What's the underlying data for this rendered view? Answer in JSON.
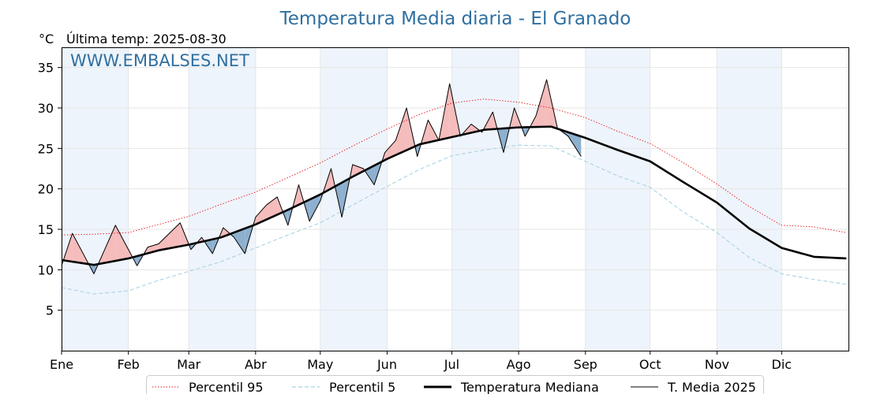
{
  "chart_data": {
    "type": "line",
    "title": "Temperatura Media diaria - El Granado",
    "unit_label": "°C",
    "last_temp_label": "Última temp: 2025-08-30",
    "watermark": "WWW.EMBALSES.NET",
    "ylabel": "",
    "xlabel": "",
    "ylim": [
      0,
      37.5
    ],
    "xlim": [
      1,
      366
    ],
    "y_ticks": [
      5,
      10,
      15,
      20,
      25,
      30,
      35
    ],
    "month_labels": [
      "Ene",
      "Feb",
      "Mar",
      "Abr",
      "May",
      "Jun",
      "Jul",
      "Ago",
      "Sep",
      "Oct",
      "Nov",
      "Dic"
    ],
    "month_start_days": [
      1,
      32,
      60,
      91,
      121,
      152,
      182,
      213,
      244,
      274,
      305,
      335
    ],
    "grid": true,
    "legend_position": "bottom",
    "series": [
      {
        "name": "Percentil 95",
        "style": "dotted",
        "color": "#e8141a",
        "x": [
          1,
          16,
          32,
          46,
          60,
          75,
          91,
          106,
          121,
          136,
          152,
          167,
          182,
          197,
          213,
          228,
          244,
          259,
          274,
          289,
          305,
          320,
          335,
          350,
          365
        ],
        "y": [
          14.3,
          14.4,
          14.6,
          15.6,
          16.6,
          18.1,
          19.6,
          21.4,
          23.2,
          25.3,
          27.4,
          29.2,
          30.6,
          31.1,
          30.7,
          30.0,
          28.8,
          27.1,
          25.6,
          23.3,
          20.6,
          17.8,
          15.5,
          15.3,
          14.6
        ]
      },
      {
        "name": "Percentil 5",
        "style": "dashed",
        "color": "#a9d3e3",
        "x": [
          1,
          16,
          32,
          46,
          60,
          75,
          91,
          106,
          121,
          136,
          152,
          167,
          182,
          197,
          213,
          228,
          244,
          259,
          274,
          289,
          305,
          320,
          335,
          350,
          365
        ],
        "y": [
          7.8,
          7.0,
          7.4,
          8.7,
          9.8,
          11.0,
          12.7,
          14.3,
          15.8,
          18.0,
          20.3,
          22.4,
          24.1,
          24.8,
          25.4,
          25.3,
          23.4,
          21.6,
          20.2,
          17.2,
          14.6,
          11.5,
          9.5,
          8.8,
          8.2
        ]
      },
      {
        "name": "Temperatura Mediana",
        "style": "bold",
        "color": "#000000",
        "x": [
          1,
          16,
          32,
          46,
          60,
          75,
          91,
          106,
          121,
          136,
          152,
          167,
          182,
          197,
          213,
          228,
          244,
          259,
          274,
          289,
          305,
          320,
          335,
          350,
          365
        ],
        "y": [
          11.2,
          10.6,
          11.4,
          12.4,
          13.1,
          14.0,
          15.6,
          17.4,
          19.3,
          21.5,
          23.7,
          25.5,
          26.4,
          27.3,
          27.6,
          27.7,
          26.3,
          24.8,
          23.4,
          20.9,
          18.3,
          15.1,
          12.7,
          11.6,
          11.4
        ]
      },
      {
        "name": "T. Media 2025",
        "style": "thin",
        "color": "#000000",
        "x": [
          1,
          6,
          11,
          16,
          21,
          26,
          31,
          36,
          41,
          46,
          51,
          56,
          61,
          66,
          71,
          76,
          81,
          86,
          91,
          96,
          101,
          106,
          111,
          116,
          121,
          126,
          131,
          136,
          141,
          146,
          151,
          156,
          161,
          166,
          171,
          176,
          181,
          186,
          191,
          196,
          201,
          206,
          211,
          216,
          221,
          226,
          231,
          236,
          242
        ],
        "y": [
          10.5,
          14.5,
          12.0,
          9.5,
          12.5,
          15.5,
          13.0,
          10.5,
          12.8,
          13.2,
          14.5,
          15.8,
          12.5,
          14.0,
          12.0,
          15.2,
          14.0,
          12.0,
          16.5,
          18.0,
          19.0,
          15.5,
          20.5,
          16.0,
          18.5,
          22.5,
          16.5,
          23.0,
          22.5,
          20.5,
          24.5,
          26.0,
          30.0,
          24.0,
          28.5,
          26.0,
          33.0,
          26.5,
          28.0,
          27.0,
          29.5,
          24.5,
          30.0,
          26.5,
          29.0,
          33.5,
          27.5,
          26.5,
          24.0
        ]
      }
    ]
  },
  "legend": {
    "items": [
      {
        "label": "Percentil 95"
      },
      {
        "label": "Percentil 5"
      },
      {
        "label": "Temperatura Mediana"
      },
      {
        "label": "T. Media 2025"
      }
    ]
  },
  "colors": {
    "above_fill": "#f5bcbc",
    "above_extreme_fill": "#ec5b5b",
    "below_fill": "#8eb0cf",
    "below_extreme_fill": "#1f4e86",
    "band": "#eef4fb",
    "title": "#2f6fa0"
  }
}
